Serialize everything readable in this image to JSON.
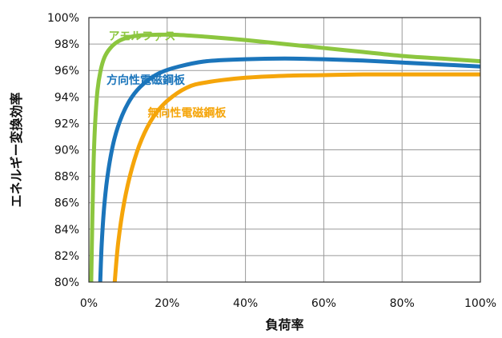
{
  "chart_data": {
    "type": "line",
    "xlabel": "負荷率",
    "ylabel": "エネルギー変換効率",
    "xlim": [
      0,
      100
    ],
    "ylim": [
      80,
      100
    ],
    "grid": true,
    "x_ticks": [
      "0%",
      "20%",
      "40%",
      "60%",
      "80%",
      "100%"
    ],
    "y_ticks": [
      "80%",
      "82%",
      "84%",
      "86%",
      "88%",
      "90%",
      "92%",
      "94%",
      "96%",
      "98%",
      "100%"
    ],
    "series": [
      {
        "name": "アモルファス",
        "color": "#8cc63f",
        "points": [
          [
            0.6,
            80
          ],
          [
            0.9,
            85
          ],
          [
            1.2,
            89
          ],
          [
            1.6,
            92
          ],
          [
            2.2,
            94.5
          ],
          [
            3,
            96
          ],
          [
            4,
            97
          ],
          [
            5.5,
            97.7
          ],
          [
            7.5,
            98.2
          ],
          [
            10,
            98.5
          ],
          [
            13,
            98.65
          ],
          [
            17,
            98.7
          ],
          [
            22,
            98.7
          ],
          [
            30,
            98.55
          ],
          [
            40,
            98.3
          ],
          [
            50,
            98.0
          ],
          [
            60,
            97.7
          ],
          [
            70,
            97.4
          ],
          [
            80,
            97.1
          ],
          [
            90,
            96.9
          ],
          [
            100,
            96.7
          ]
        ]
      },
      {
        "name": "方向性電磁鋼板",
        "color": "#1b75bb",
        "points": [
          [
            2.9,
            80
          ],
          [
            3.3,
            83
          ],
          [
            4,
            86
          ],
          [
            5,
            88.5
          ],
          [
            6.5,
            90.8
          ],
          [
            8.5,
            92.6
          ],
          [
            11,
            94
          ],
          [
            14,
            95
          ],
          [
            18,
            95.8
          ],
          [
            23,
            96.3
          ],
          [
            30,
            96.7
          ],
          [
            40,
            96.85
          ],
          [
            50,
            96.9
          ],
          [
            60,
            96.85
          ],
          [
            70,
            96.75
          ],
          [
            80,
            96.6
          ],
          [
            90,
            96.45
          ],
          [
            100,
            96.3
          ]
        ]
      },
      {
        "name": "無向性電磁鋼板",
        "color": "#f5a50a",
        "points": [
          [
            6.6,
            80
          ],
          [
            7.5,
            83
          ],
          [
            9,
            86
          ],
          [
            11,
            88.6
          ],
          [
            13.5,
            90.8
          ],
          [
            16.5,
            92.5
          ],
          [
            20,
            93.7
          ],
          [
            25,
            94.7
          ],
          [
            30,
            95.1
          ],
          [
            40,
            95.45
          ],
          [
            50,
            95.6
          ],
          [
            60,
            95.65
          ],
          [
            70,
            95.7
          ],
          [
            80,
            95.7
          ],
          [
            90,
            95.7
          ],
          [
            100,
            95.7
          ]
        ]
      }
    ]
  }
}
